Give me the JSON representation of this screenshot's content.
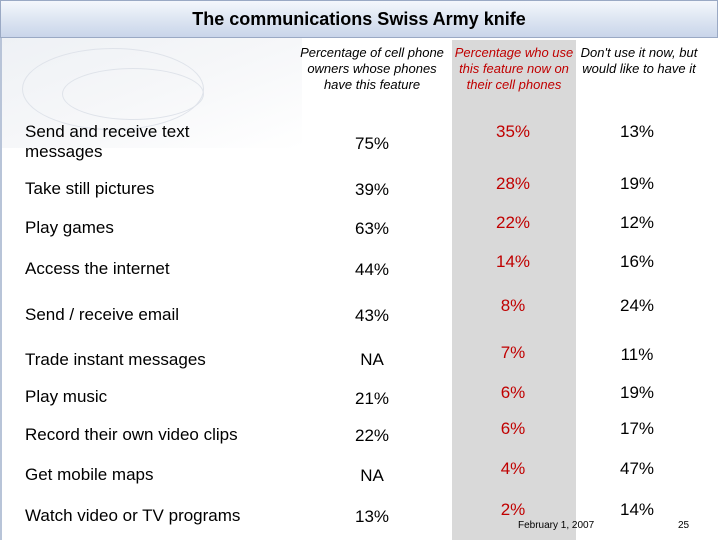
{
  "title": "The communications Swiss Army knife",
  "footer": {
    "date": "February 1, 2007",
    "page": "25"
  },
  "colors": {
    "accent_red": "#c00000",
    "shade": "#d9d9d9",
    "title_bg": "#d9e2f0"
  },
  "chart_data": {
    "type": "table",
    "columns": [
      "Percentage of cell phone owners whose phones have this feature",
      "Percentage who use this feature now on their cell phones",
      "Don't use it now, but would like to have it"
    ],
    "rows": [
      {
        "label": "Send and receive text messages",
        "have": "75%",
        "use": "35%",
        "want": "13%"
      },
      {
        "label": "Take still pictures",
        "have": "39%",
        "use": "28%",
        "want": "19%"
      },
      {
        "label": "Play games",
        "have": "63%",
        "use": "22%",
        "want": "12%"
      },
      {
        "label": "Access the internet",
        "have": "44%",
        "use": "14%",
        "want": "16%"
      },
      {
        "label": "Send / receive email",
        "have": "43%",
        "use": "8%",
        "want": "24%"
      },
      {
        "label": "Trade instant messages",
        "have": "NA",
        "use": "7%",
        "want": "11%"
      },
      {
        "label": "Play music",
        "have": "21%",
        "use": "6%",
        "want": "19%"
      },
      {
        "label": "Record their own video clips",
        "have": "22%",
        "use": "6%",
        "want": "17%"
      },
      {
        "label": "Get mobile maps",
        "have": "NA",
        "use": "4%",
        "want": "47%"
      },
      {
        "label": "Watch video or TV programs",
        "have": "13%",
        "use": "2%",
        "want": "14%"
      }
    ]
  }
}
